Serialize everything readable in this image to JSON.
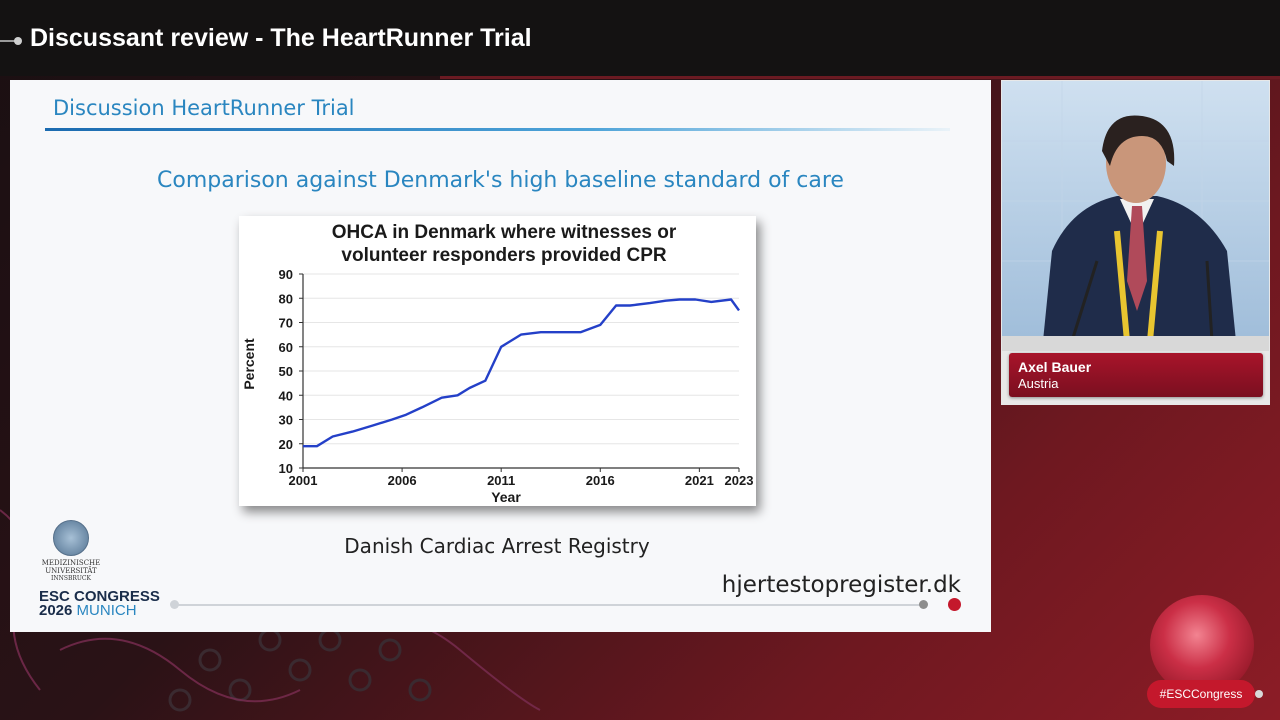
{
  "header": {
    "title": "Discussant review - The HeartRunner Trial"
  },
  "slide": {
    "heading": "Discussion HeartRunner Trial",
    "subtitle": "Comparison against Denmark's high baseline standard of care",
    "source": "Danish Cardiac Arrest Registry",
    "url": "hjertestopregister.dk",
    "university_logo": {
      "line1": "MEDIZINISCHE",
      "line2": "UNIVERSITÄT",
      "line3": "INNSBRUCK"
    },
    "congress_logo": {
      "line1": "ESC CONGRESS",
      "year": "2026",
      "city": "MUNICH"
    }
  },
  "speaker": {
    "name": "Axel Bauer",
    "country": "Austria"
  },
  "footer": {
    "hashtag": "#ESCCongress"
  },
  "colors": {
    "accent": "#c4182c",
    "slide_blue": "#2a86c0",
    "line_blue": "#2440c8"
  },
  "chart_data": {
    "type": "line",
    "title": "OHCA in Denmark where witnesses or volunteer responders provided CPR",
    "title_line1": "OHCA in Denmark where witnesses or",
    "title_line2": "volunteer responders provided CPR",
    "xlabel": "Year",
    "ylabel": "Percent",
    "x_ticks": [
      "2001",
      "2006",
      "2011",
      "2016",
      "2021",
      "2023"
    ],
    "y_ticks": [
      "10",
      "20",
      "30",
      "40",
      "50",
      "60",
      "70",
      "80",
      "90"
    ],
    "ylim": [
      10,
      90
    ],
    "xlim": [
      2001,
      2023
    ],
    "grid": true,
    "series": [
      {
        "x": [
          2001,
          2001.7,
          2002.5,
          2003.5,
          2004.5,
          2005.5,
          2006.2,
          2007,
          2008,
          2008.8,
          2009.4,
          2010.2,
          2011,
          2012,
          2013,
          2014,
          2015,
          2016,
          2016.8,
          2017.5,
          2018.5,
          2019.3,
          2020,
          2020.8,
          2021.6,
          2022.6,
          2023
        ],
        "values": [
          19,
          19,
          23,
          25,
          27.5,
          30,
          32,
          35,
          39,
          40,
          43,
          46,
          60,
          65,
          66,
          66,
          66,
          69,
          77,
          77,
          78,
          79,
          79.5,
          79.5,
          78.5,
          79.5,
          75
        ]
      }
    ]
  }
}
